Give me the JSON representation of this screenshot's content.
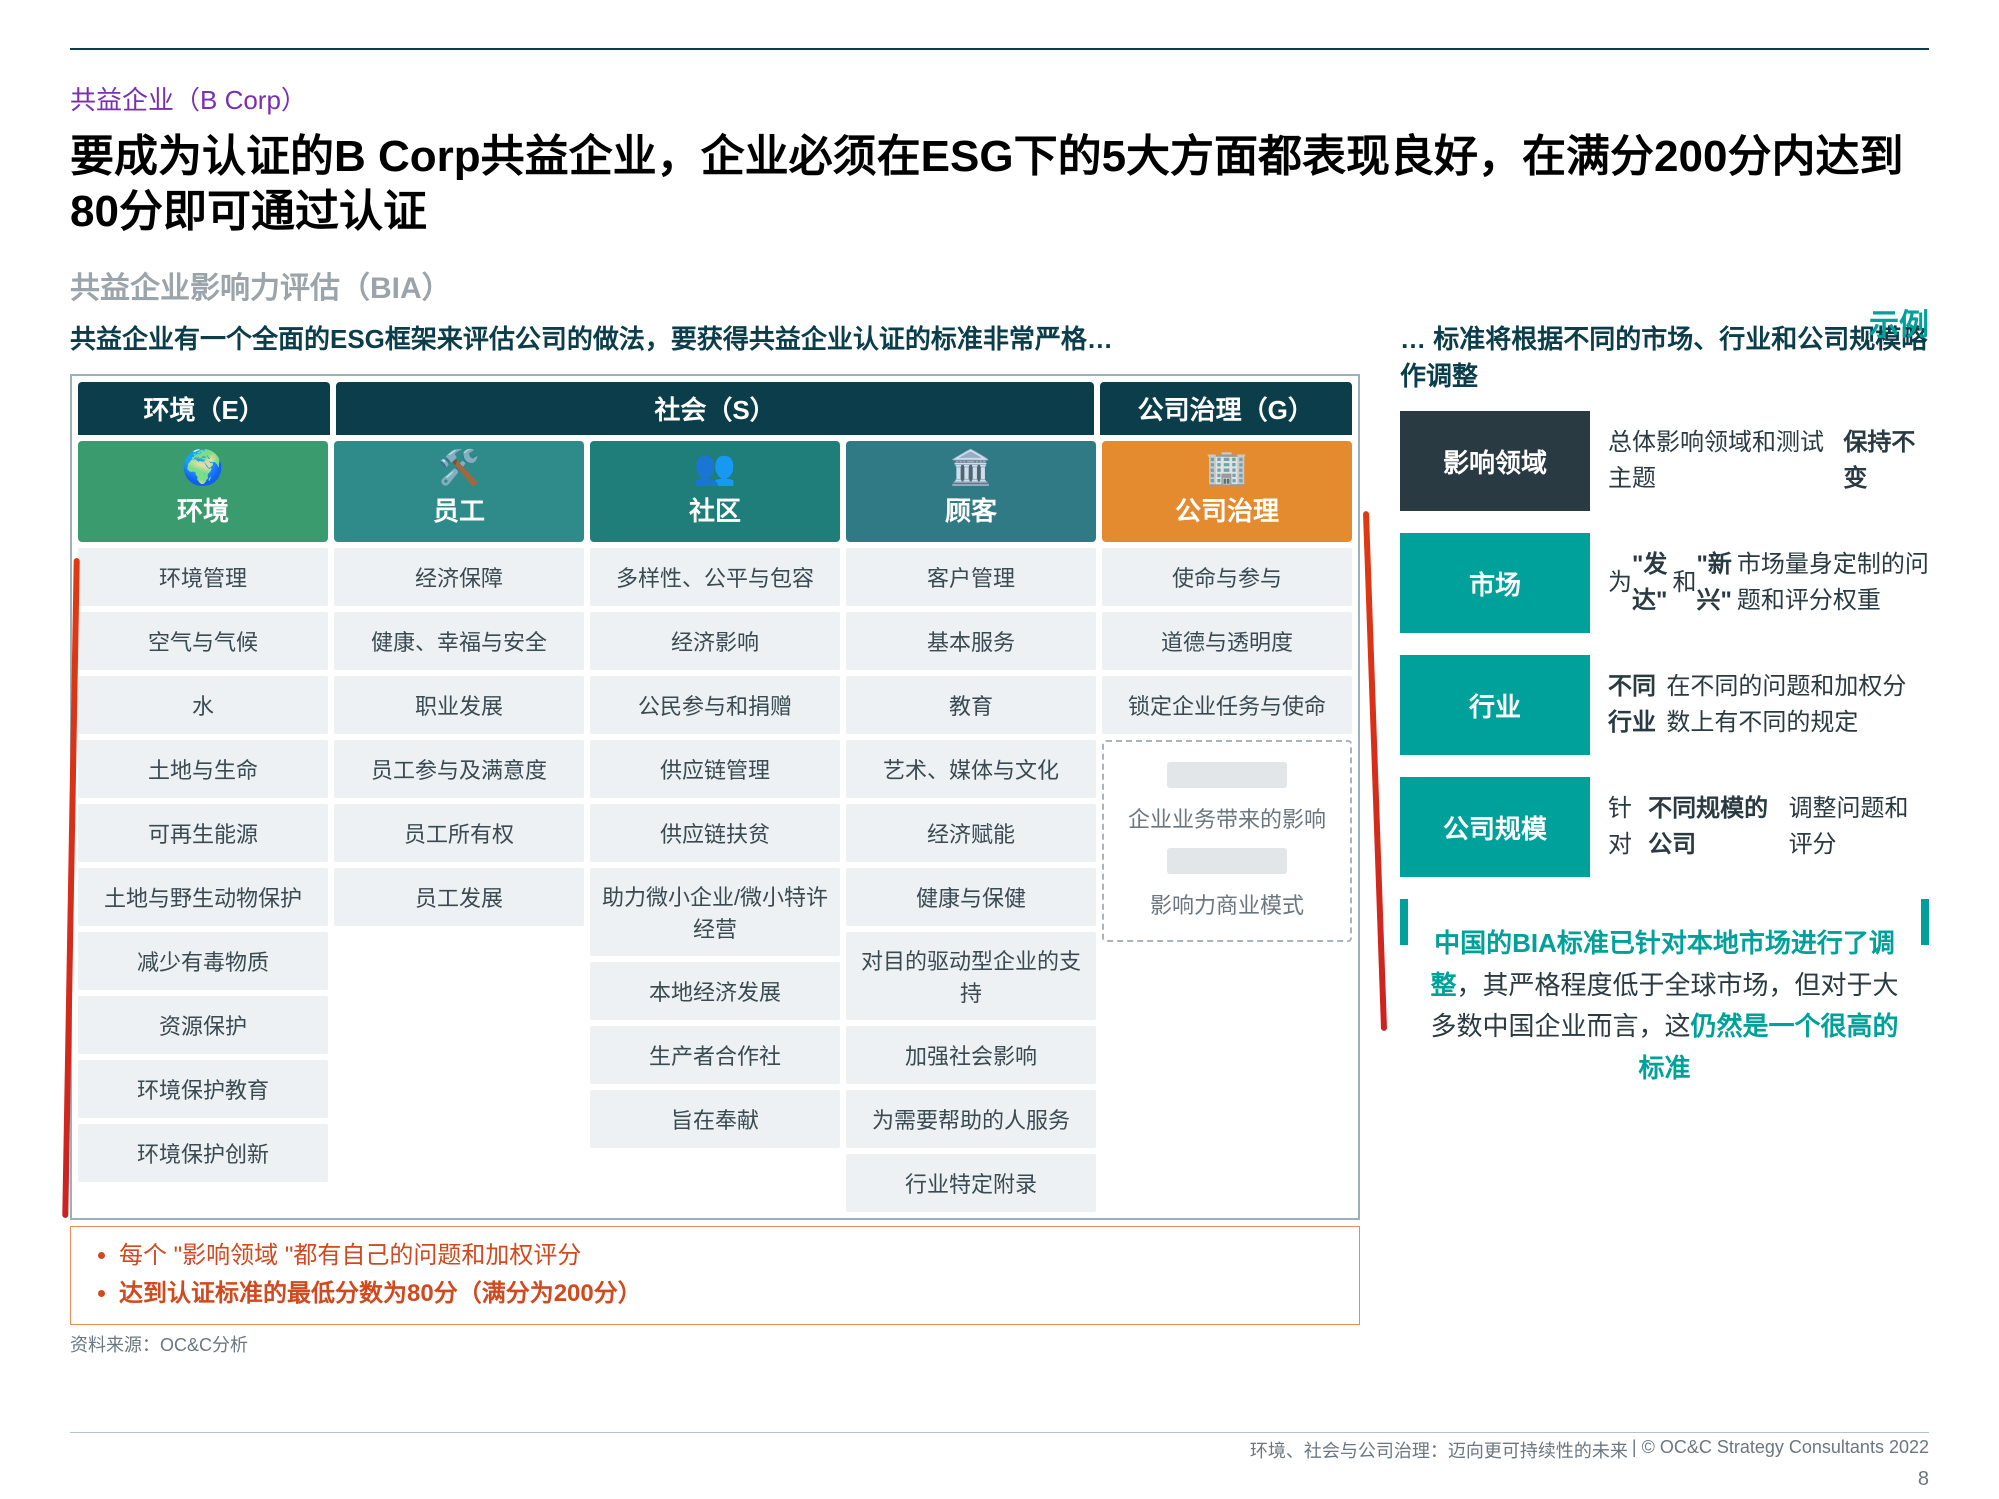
{
  "colors": {
    "teal": "#00a19a",
    "darkN": "#0b3d4a",
    "green1": "#3a9b6e",
    "green2": "#2f8a8a",
    "green3": "#1f7d7a",
    "green4": "#2f7a85",
    "orange": "#e58b2f"
  },
  "kicker": "共益企业（B Corp）",
  "title": "要成为认证的B Corp共益企业，企业必须在ESG下的5大方面都表现良好，在满分200分内达到80分即可通过认证",
  "subtitle": "共益企业影响力评估（BIA）",
  "example": "示例",
  "left_lead": "共益企业有一个全面的ESG框架来评估公司的做法，要获得共益企业认证的标准非常严格…",
  "right_lead": "… 标准将根据不同的市场、行业和公司规模略作调整",
  "esg_headers": [
    "环境（E）",
    "社会（S）",
    "公司治理（G）"
  ],
  "pillars": [
    {
      "label": "环境",
      "icon": "🌍",
      "color": "#3a9b6e"
    },
    {
      "label": "员工",
      "icon": "🛠️",
      "color": "#2f8a8a"
    },
    {
      "label": "社区",
      "icon": "👥",
      "color": "#1f7d7a"
    },
    {
      "label": "顾客",
      "icon": "🏛️",
      "color": "#2f7a85"
    },
    {
      "label": "公司治理",
      "icon": "🏢",
      "color": "#e58b2f"
    }
  ],
  "cols": {
    "env": [
      "环境管理",
      "空气与气候",
      "水",
      "土地与生命",
      "可再生能源",
      "土地与野生动物保护",
      "减少有毒物质",
      "资源保护",
      "环境保护教育",
      "环境保护创新"
    ],
    "emp": [
      "经济保障",
      "健康、幸福与安全",
      "职业发展",
      "员工参与及满意度",
      "员工所有权",
      "员工发展"
    ],
    "com": [
      "多样性、公平与包容",
      "经济影响",
      "公民参与和捐赠",
      "供应链管理",
      "供应链扶贫",
      "助力微小企业/微小特许经营",
      "本地经济发展",
      "生产者合作社",
      "旨在奉献"
    ],
    "cus": [
      "客户管理",
      "基本服务",
      "教育",
      "艺术、媒体与文化",
      "经济赋能",
      "健康与保健",
      "对目的驱动型企业的支持",
      "加强社会影响",
      "为需要帮助的人服务",
      "行业特定附录"
    ],
    "gov": [
      "使命与参与",
      "道德与透明度",
      "锁定企业任务与使命"
    ]
  },
  "gov_dashed": {
    "line1": "企业业务带来的影响",
    "line2": "影响力商业模式"
  },
  "notes": [
    "每个 \"影响领域 \"都有自己的问题和加权评分",
    "达到认证标准的最低分数为80分（满分为200分）"
  ],
  "source": "资料来源：OC&C分析",
  "adjust": [
    {
      "tag": "影响领域",
      "dark": true,
      "txt_parts": [
        "总体影响领域和测试主题",
        "保持不变"
      ]
    },
    {
      "tag": "市场",
      "dark": false,
      "txt_parts": [
        "为 ",
        "\"发达\"",
        " 和 ",
        "\"新兴\"",
        " 市场量身定制的问题和评分权重"
      ]
    },
    {
      "tag": "行业",
      "dark": false,
      "txt_parts": [
        "",
        "不同行业",
        "在不同的问题和加权分数上有不同的规定"
      ]
    },
    {
      "tag": "公司规模",
      "dark": false,
      "txt_parts": [
        "针对",
        "不同规模的公司",
        "调整问题和评分"
      ]
    }
  ],
  "callout": {
    "teal1": "中国的BIA标准已针对本地市场进行了调整",
    "mid": "，其严格程度低于全球市场，但对于大多数中国企业而言，这",
    "teal2": "仍然是一个很高的标准"
  },
  "footer_left": "环境、社会与公司治理：迈向更可持续性的未来",
  "footer_right": "| © OC&C Strategy Consultants 2022",
  "page": "8"
}
